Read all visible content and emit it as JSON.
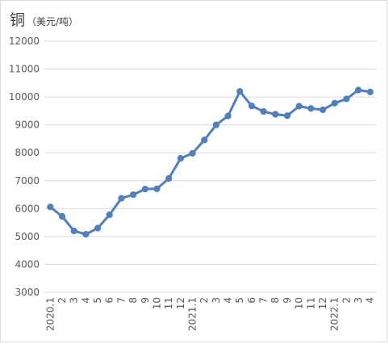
{
  "chart_data": {
    "type": "line",
    "title": "铜",
    "unit": "（美元/吨）",
    "xlabel": "",
    "ylabel": "",
    "ylim": [
      3000,
      12000
    ],
    "yticks": [
      3000,
      4000,
      5000,
      6000,
      7000,
      8000,
      9000,
      10000,
      11000,
      12000
    ],
    "grid": true,
    "legend": "none",
    "categories": [
      "2020.1",
      "2",
      "3",
      "4",
      "5",
      "6",
      "7",
      "8",
      "9",
      "10",
      "11",
      "12",
      "2021.1",
      "2",
      "3",
      "4",
      "5",
      "6",
      "7",
      "8",
      "9",
      "10",
      "11",
      "12",
      "2022.1",
      "2",
      "3",
      "4"
    ],
    "series": [
      {
        "color": "#4f7fbf",
        "values": [
          6060,
          5720,
          5200,
          5080,
          5300,
          5780,
          6370,
          6500,
          6700,
          6710,
          7080,
          7800,
          7980,
          8460,
          9000,
          9320,
          10200,
          9680,
          9480,
          9380,
          9330,
          9670,
          9590,
          9540,
          9780,
          9930,
          10250,
          10180
        ]
      }
    ]
  }
}
